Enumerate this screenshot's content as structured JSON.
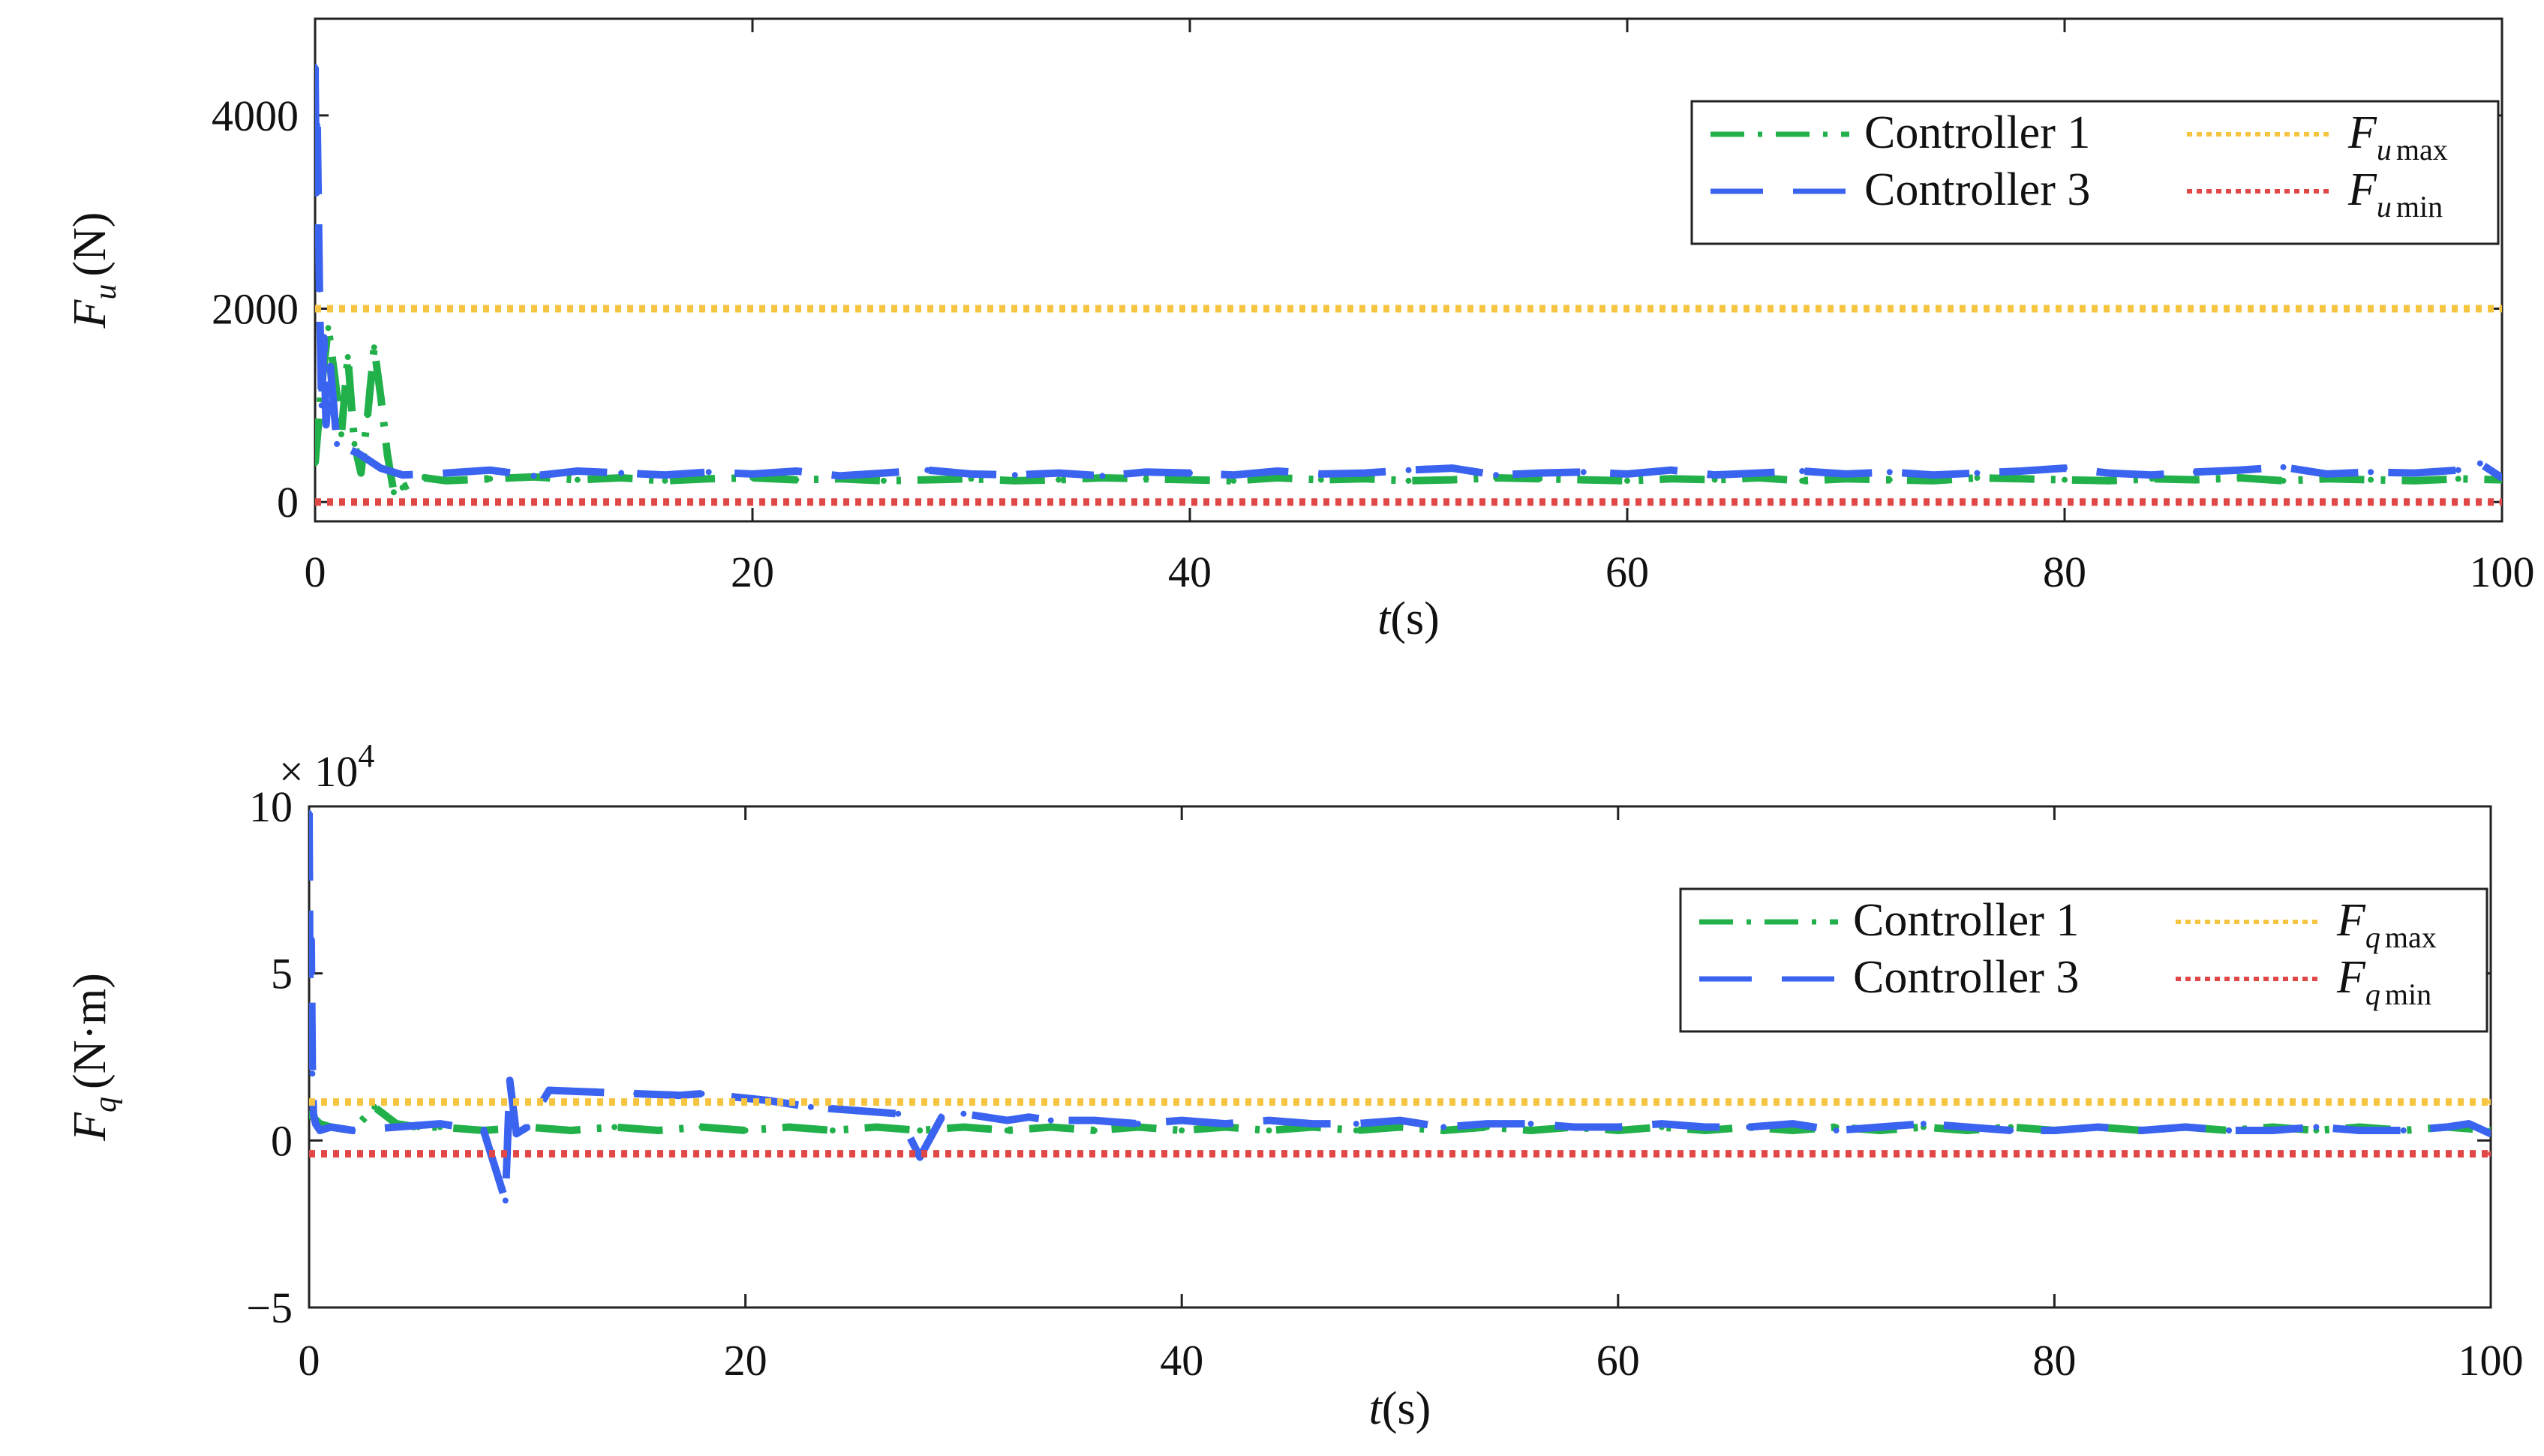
{
  "colors": {
    "controller1": "#22b04b",
    "controller3": "#3a63f0",
    "fmax": "#f5c542",
    "fmin": "#e04848",
    "axis": "#222222"
  },
  "chart_data": [
    {
      "type": "line",
      "id": "fu",
      "ylabel_symbol": "F",
      "ylabel_sub": "u",
      "ylabel_unit": "(N)",
      "xlabel_symbol": "t",
      "xlabel_unit": "(s)",
      "xlim": [
        0,
        100
      ],
      "ylim": [
        -200,
        5000
      ],
      "xticks": [
        0,
        20,
        40,
        60,
        80,
        100
      ],
      "yticks": [
        0,
        2000,
        4000
      ],
      "ytick_labels": [
        "0",
        "2000",
        "4000"
      ],
      "exponent_label": "",
      "legend": {
        "placement": "top-right",
        "entries": [
          {
            "key": "c1",
            "text": "Controller 1"
          },
          {
            "key": "c3",
            "text": "Controller 3"
          },
          {
            "key": "fmax",
            "text": "F",
            "sub": "u",
            "subtext": "max"
          },
          {
            "key": "fmin",
            "text": "F",
            "sub": "u",
            "subtext": "min"
          }
        ]
      },
      "series": [
        {
          "name": "Controller 1",
          "key": "c1",
          "x": [
            0,
            0.3,
            0.6,
            0.9,
            1.2,
            1.5,
            1.8,
            2.1,
            2.4,
            2.7,
            3.0,
            3.3,
            3.6,
            4,
            5,
            6,
            8,
            10,
            12,
            14,
            16,
            18,
            20,
            22,
            24,
            26,
            28,
            30,
            32,
            34,
            36,
            38,
            40,
            42,
            44,
            46,
            48,
            50,
            52,
            54,
            56,
            58,
            60,
            62,
            64,
            66,
            68,
            70,
            72,
            74,
            76,
            78,
            80,
            82,
            84,
            86,
            88,
            90,
            92,
            94,
            96,
            98,
            100
          ],
          "y": [
            400,
            1200,
            1800,
            1300,
            700,
            1500,
            600,
            300,
            900,
            1600,
            1100,
            500,
            100,
            150,
            250,
            220,
            240,
            260,
            230,
            250,
            220,
            240,
            250,
            230,
            240,
            220,
            230,
            240,
            220,
            230,
            250,
            240,
            230,
            220,
            250,
            230,
            240,
            220,
            230,
            250,
            240,
            230,
            220,
            240,
            230,
            250,
            220,
            240,
            230,
            220,
            250,
            240,
            230,
            220,
            240,
            230,
            250,
            220,
            240,
            230,
            220,
            240,
            230
          ]
        },
        {
          "name": "Controller 3",
          "key": "c3",
          "x": [
            0,
            0.05,
            0.1,
            0.2,
            0.3,
            0.4,
            0.5,
            0.7,
            1.0,
            2.0,
            3.0,
            4,
            6,
            8,
            10,
            12,
            14,
            16,
            18,
            20,
            22,
            24,
            26,
            28,
            30,
            32,
            34,
            36,
            38,
            40,
            42,
            44,
            46,
            48,
            50,
            52,
            54,
            56,
            58,
            60,
            62,
            64,
            66,
            68,
            70,
            72,
            74,
            76,
            78,
            80,
            82,
            84,
            86,
            88,
            90,
            92,
            94,
            96,
            98,
            99,
            100
          ],
          "y": [
            4500,
            3200,
            3900,
            2200,
            1000,
            1700,
            800,
            1400,
            600,
            500,
            350,
            280,
            300,
            330,
            270,
            320,
            300,
            280,
            310,
            290,
            320,
            270,
            300,
            330,
            290,
            280,
            300,
            270,
            310,
            300,
            280,
            320,
            290,
            300,
            330,
            350,
            280,
            300,
            310,
            290,
            330,
            280,
            300,
            320,
            290,
            310,
            280,
            300,
            320,
            350,
            300,
            280,
            310,
            330,
            360,
            290,
            310,
            300,
            330,
            400,
            250
          ]
        },
        {
          "name": "F_u max",
          "key": "fmax",
          "x": [
            0,
            100
          ],
          "y": [
            2000,
            2000
          ]
        },
        {
          "name": "F_u min",
          "key": "fmin",
          "x": [
            0,
            100
          ],
          "y": [
            0,
            0
          ]
        }
      ]
    },
    {
      "type": "line",
      "id": "fq",
      "ylabel_symbol": "F",
      "ylabel_sub": "q",
      "ylabel_unit": "(N·m)",
      "xlabel_symbol": "t",
      "xlabel_unit": "(s)",
      "xlim": [
        0,
        100
      ],
      "ylim": [
        -5,
        10
      ],
      "xticks": [
        0,
        20,
        40,
        60,
        80,
        100
      ],
      "yticks": [
        -5,
        0,
        5,
        10
      ],
      "ytick_labels": [
        "−5",
        "0",
        "5",
        "10"
      ],
      "exponent_label": "× 10",
      "exponent_power": "4",
      "legend": {
        "placement": "top-right",
        "entries": [
          {
            "key": "c1",
            "text": "Controller 1"
          },
          {
            "key": "c3",
            "text": "Controller 3"
          },
          {
            "key": "fmax",
            "text": "F",
            "sub": "q",
            "subtext": "max"
          },
          {
            "key": "fmin",
            "text": "F",
            "sub": "q",
            "subtext": "min"
          }
        ]
      },
      "series": [
        {
          "name": "Controller 1",
          "key": "c1",
          "x": [
            0,
            0.5,
            1,
            2,
            3,
            4,
            5,
            6,
            8,
            10,
            12,
            14,
            16,
            18,
            20,
            22,
            24,
            26,
            28,
            30,
            32,
            34,
            36,
            38,
            40,
            42,
            44,
            46,
            48,
            50,
            52,
            54,
            56,
            58,
            60,
            62,
            64,
            66,
            68,
            70,
            72,
            74,
            76,
            78,
            80,
            82,
            84,
            86,
            88,
            90,
            92,
            94,
            96,
            98,
            100
          ],
          "y": [
            0.8,
            0.5,
            0.4,
            0.3,
            1.0,
            0.5,
            0.4,
            0.4,
            0.3,
            0.4,
            0.3,
            0.4,
            0.3,
            0.4,
            0.3,
            0.4,
            0.3,
            0.4,
            0.3,
            0.4,
            0.3,
            0.4,
            0.3,
            0.4,
            0.3,
            0.4,
            0.3,
            0.4,
            0.3,
            0.4,
            0.3,
            0.4,
            0.3,
            0.4,
            0.3,
            0.4,
            0.3,
            0.4,
            0.3,
            0.4,
            0.3,
            0.4,
            0.3,
            0.4,
            0.3,
            0.4,
            0.3,
            0.4,
            0.3,
            0.4,
            0.3,
            0.4,
            0.3,
            0.4,
            0.3
          ]
        },
        {
          "name": "Controller 3",
          "key": "c3",
          "x": [
            0,
            0.05,
            0.1,
            0.15,
            0.2,
            0.3,
            0.5,
            1,
            2,
            4,
            6,
            8,
            9,
            9.2,
            9.5,
            10,
            11,
            13,
            15,
            17,
            18,
            21,
            23,
            25,
            27,
            28,
            29,
            30,
            32,
            33,
            34,
            36,
            38,
            40,
            42,
            44,
            46,
            48,
            50,
            52,
            54,
            56,
            58,
            60,
            62,
            64,
            66,
            68,
            70,
            72,
            74,
            76,
            78,
            80,
            82,
            84,
            86,
            88,
            90,
            92,
            94,
            96,
            98,
            99,
            100
          ],
          "y": [
            9.8,
            3.0,
            6.0,
            2.0,
            0.8,
            0.5,
            0.3,
            0.4,
            0.3,
            0.4,
            0.5,
            0.3,
            -1.8,
            1.8,
            0.2,
            0.4,
            1.5,
            1.45,
            1.4,
            1.35,
            1.4,
            1.2,
            1.0,
            0.9,
            0.8,
            -0.5,
            0.7,
            0.8,
            0.6,
            0.7,
            0.6,
            0.6,
            0.5,
            0.6,
            0.5,
            0.6,
            0.5,
            0.5,
            0.6,
            0.4,
            0.5,
            0.5,
            0.4,
            0.4,
            0.5,
            0.4,
            0.4,
            0.5,
            0.3,
            0.4,
            0.5,
            0.4,
            0.3,
            0.3,
            0.4,
            0.3,
            0.4,
            0.3,
            0.3,
            0.4,
            0.3,
            0.3,
            0.4,
            0.5,
            0.2
          ]
        },
        {
          "name": "F_q max",
          "key": "fmax",
          "x": [
            0,
            100
          ],
          "y": [
            1.15,
            1.15
          ]
        },
        {
          "name": "F_q min",
          "key": "fmin",
          "x": [
            0,
            100
          ],
          "y": [
            -0.4,
            -0.4
          ]
        }
      ]
    }
  ]
}
